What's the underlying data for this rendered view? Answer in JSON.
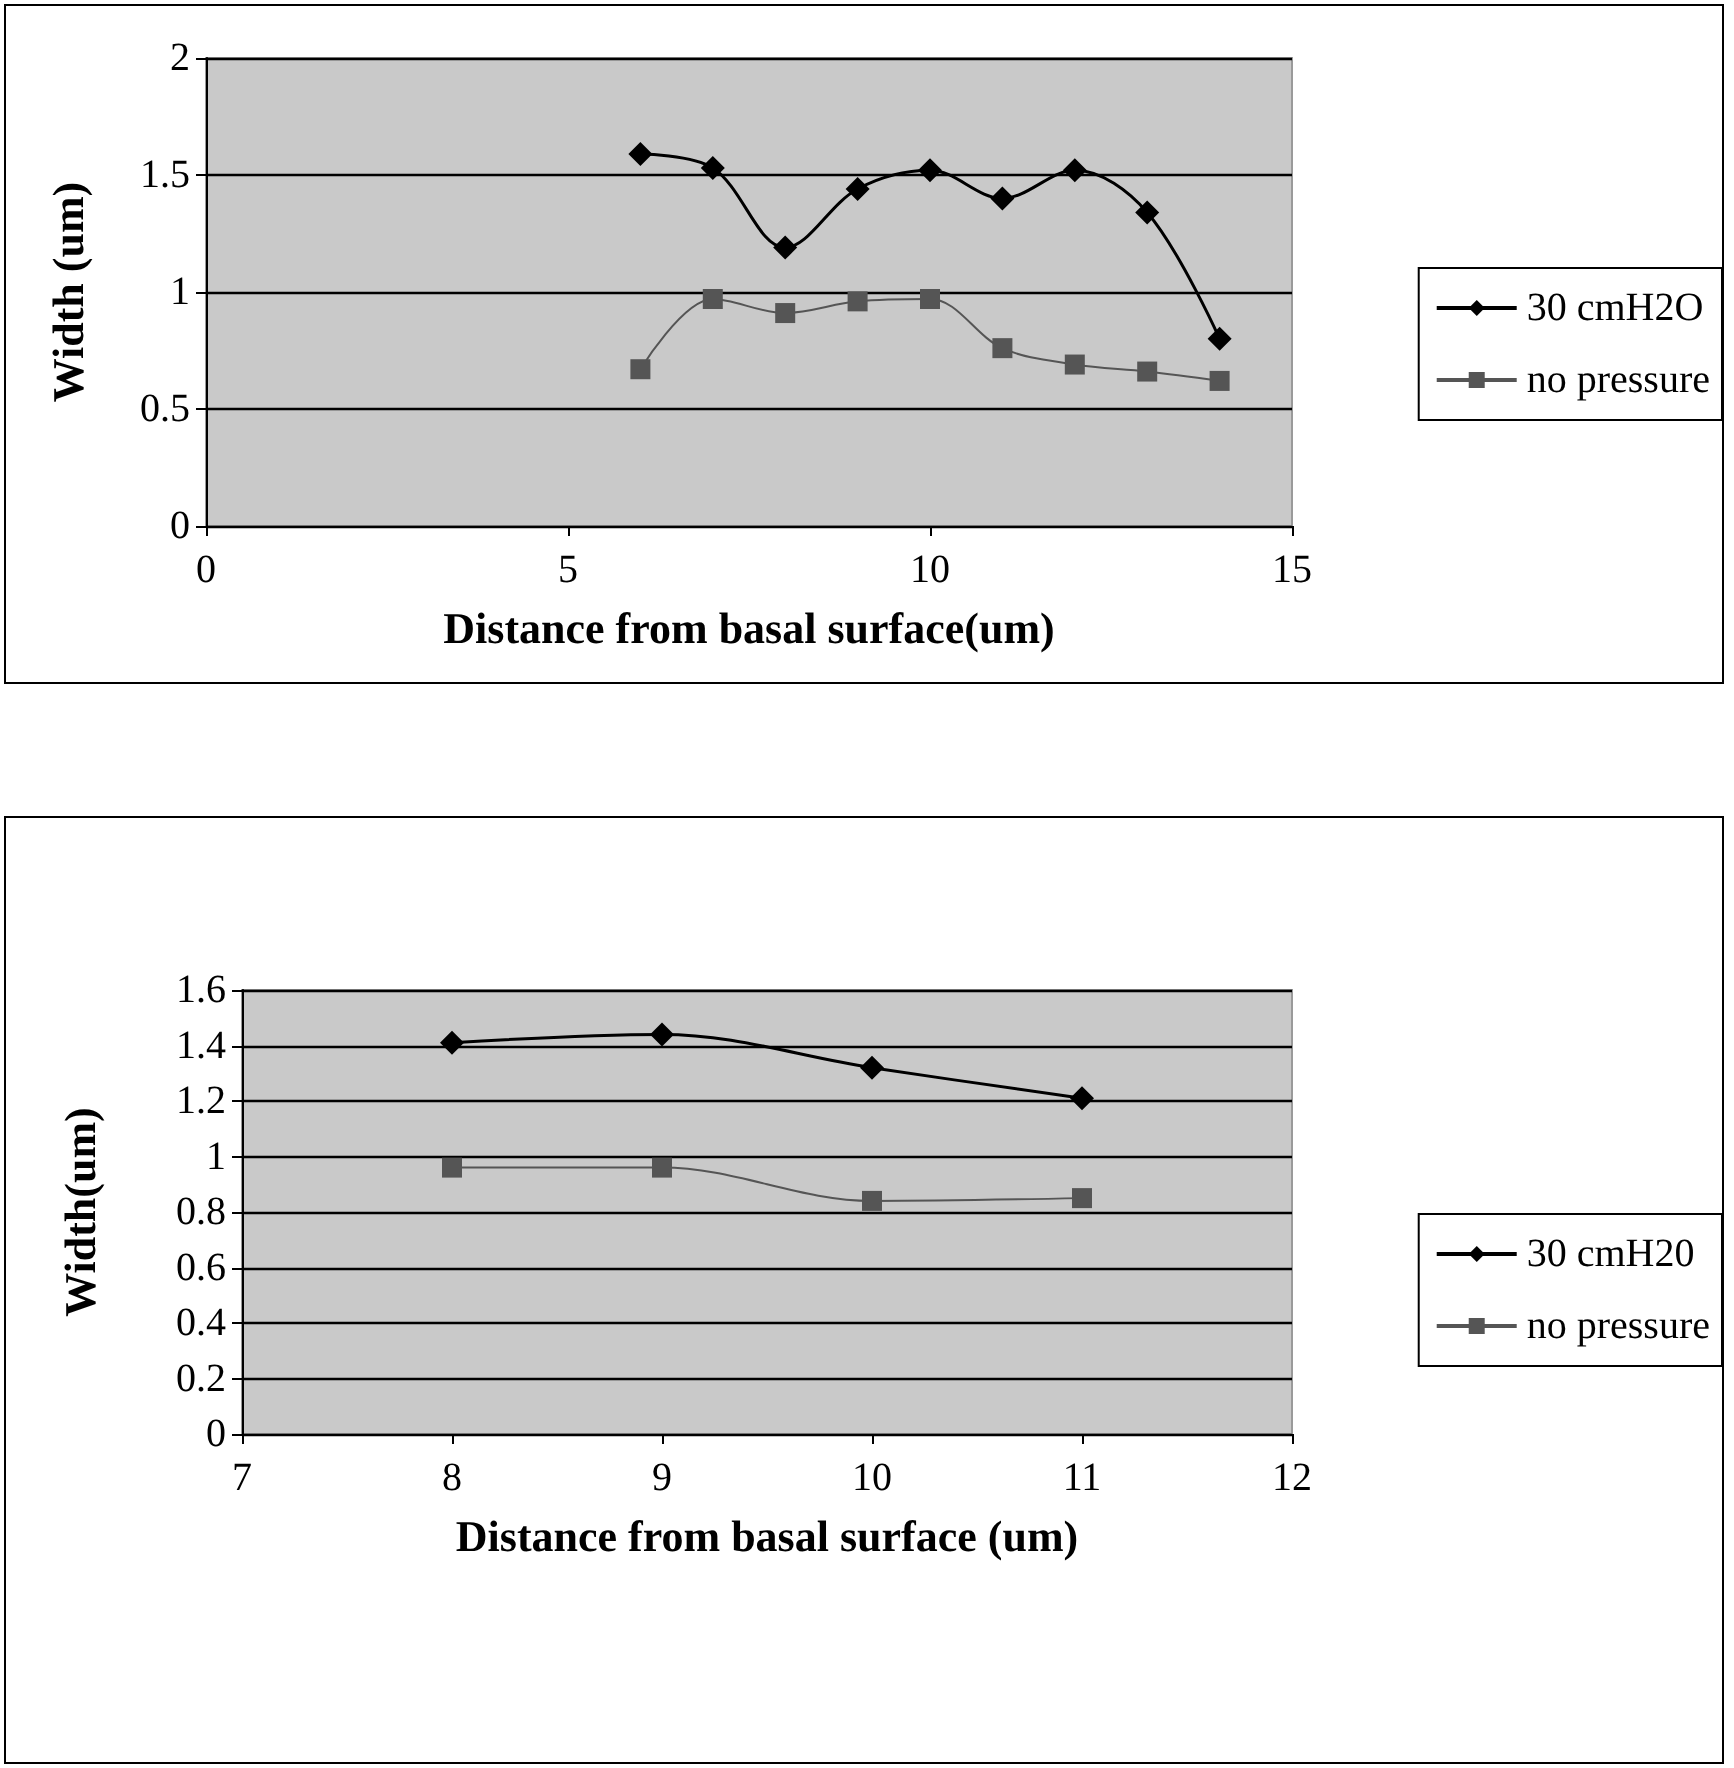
{
  "chart_data": [
    {
      "type": "line",
      "xlabel": "Distance from basal surface(um)",
      "ylabel": "Width (um)",
      "x": [
        6,
        7,
        8,
        9,
        10,
        11,
        12,
        13,
        14
      ],
      "series": [
        {
          "name": "30 cmH2O",
          "color": "#000000",
          "marker": "diamond",
          "values": [
            1.59,
            1.53,
            1.19,
            1.44,
            1.52,
            1.4,
            1.52,
            1.34,
            0.8
          ]
        },
        {
          "name": "no pressure",
          "color": "#555555",
          "marker": "square",
          "values": [
            0.67,
            0.97,
            0.91,
            0.96,
            0.97,
            0.76,
            0.69,
            0.66,
            0.62
          ]
        }
      ],
      "xlim": [
        0,
        15
      ],
      "xticks": [
        0,
        5,
        10,
        15
      ],
      "ylim": [
        0,
        2
      ],
      "yticks": [
        0,
        0.5,
        1,
        1.5,
        2
      ],
      "grid": "y",
      "legend": "right"
    },
    {
      "type": "line",
      "xlabel": "Distance from basal surface (um)",
      "ylabel": "Width(um)",
      "x": [
        8,
        9,
        10,
        11
      ],
      "series": [
        {
          "name": "30 cmH20",
          "color": "#000000",
          "marker": "diamond",
          "values": [
            1.41,
            1.44,
            1.32,
            1.21
          ]
        },
        {
          "name": "no pressure",
          "color": "#555555",
          "marker": "square",
          "values": [
            0.96,
            0.96,
            0.84,
            0.85
          ]
        }
      ],
      "xlim": [
        7,
        12
      ],
      "xticks": [
        7,
        8,
        9,
        10,
        11,
        12
      ],
      "ylim": [
        0,
        1.6
      ],
      "yticks": [
        0,
        0.2,
        0.4,
        0.6,
        0.8,
        1,
        1.2,
        1.4,
        1.6
      ],
      "grid": "y",
      "legend": "right"
    }
  ]
}
